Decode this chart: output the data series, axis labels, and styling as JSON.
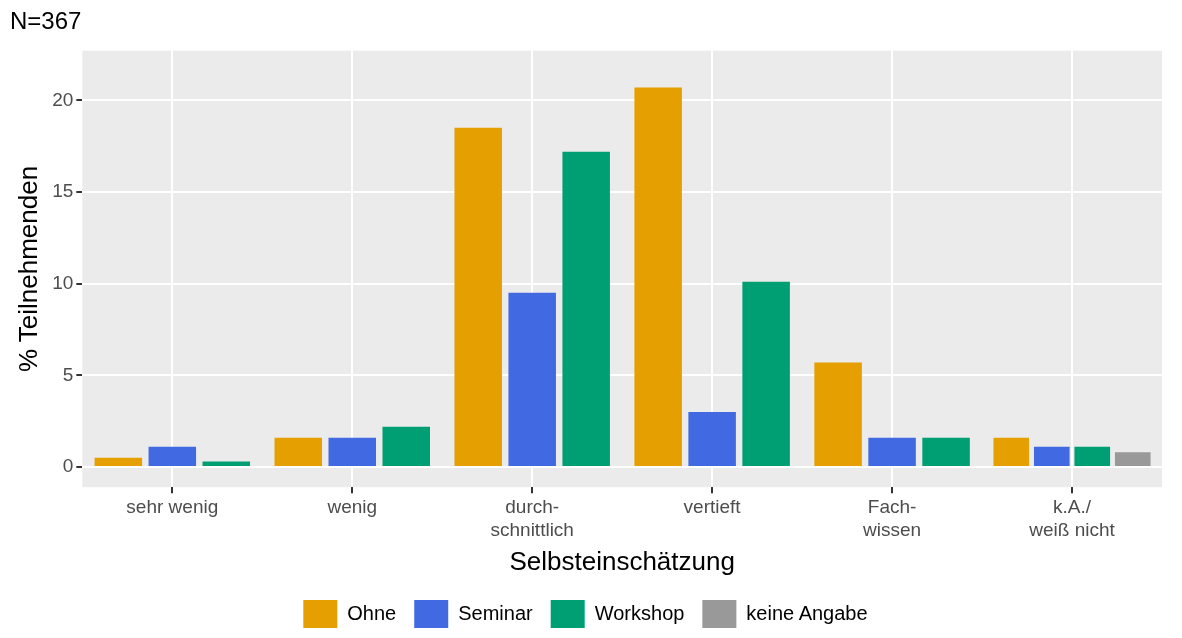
{
  "chart_data": {
    "type": "bar",
    "title": "N=367",
    "xlabel": "Selbsteinschätzung",
    "ylabel": "% Teilnehmenden",
    "categories": [
      "sehr wenig",
      "wenig",
      "durch-\nschnittlich",
      "vertieft",
      "Fach-\nwissen",
      "k.A./\nweiß nicht"
    ],
    "series": [
      {
        "name": "Ohne",
        "color": "#e69f00",
        "values": [
          0.5,
          1.6,
          18.5,
          20.7,
          5.7,
          1.6
        ]
      },
      {
        "name": "Seminar",
        "color": "#4169e1",
        "values": [
          1.1,
          1.6,
          9.5,
          3.0,
          1.6,
          1.1
        ]
      },
      {
        "name": "Workshop",
        "color": "#009e73",
        "values": [
          0.3,
          2.2,
          17.2,
          10.1,
          1.6,
          1.1
        ]
      },
      {
        "name": "keine Angabe",
        "color": "#999999",
        "values": [
          null,
          null,
          null,
          null,
          null,
          0.8
        ]
      }
    ],
    "ylim": [
      -1.1,
      22.7
    ],
    "yticks": [
      0,
      5,
      10,
      15,
      20
    ],
    "grid": true,
    "legend": "bottom"
  }
}
